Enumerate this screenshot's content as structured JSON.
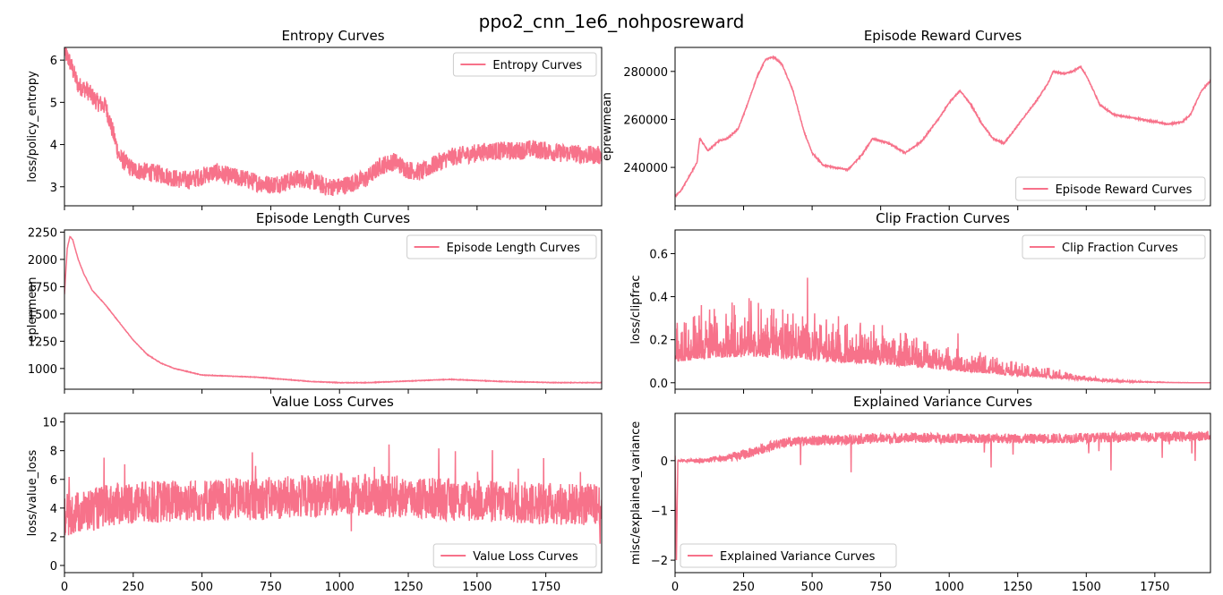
{
  "figure_title": "ppo2_cnn_1e6_nohposreward",
  "line_color": "#f7728a",
  "chart_data": [
    {
      "type": "line",
      "id": "entropy",
      "title": "Entropy Curves",
      "xlabel": "",
      "ylabel": "loss/policy_entropy",
      "legend": "Entropy Curves",
      "legend_loc": "top-right",
      "xlim": [
        0,
        1953
      ],
      "ylim": [
        2.55,
        6.3
      ],
      "xticks": [
        0,
        250,
        500,
        750,
        1000,
        1250,
        1500,
        1750
      ],
      "xticklabels_shown": false,
      "yticks": [
        3,
        4,
        5,
        6
      ],
      "yticklabels": [
        "3",
        "4",
        "5",
        "6"
      ],
      "noise": 0.22,
      "x": [
        0,
        20,
        50,
        80,
        120,
        150,
        180,
        200,
        250,
        300,
        350,
        400,
        450,
        500,
        550,
        600,
        650,
        700,
        750,
        800,
        850,
        900,
        950,
        1000,
        1050,
        1100,
        1150,
        1200,
        1250,
        1300,
        1350,
        1400,
        1450,
        1500,
        1550,
        1600,
        1650,
        1700,
        1750,
        1800,
        1850,
        1900,
        1953
      ],
      "y": [
        6.2,
        5.95,
        5.4,
        5.3,
        5.0,
        4.9,
        4.2,
        3.7,
        3.4,
        3.35,
        3.3,
        3.2,
        3.15,
        3.25,
        3.35,
        3.25,
        3.2,
        3.1,
        3.05,
        3.1,
        3.2,
        3.15,
        3.0,
        3.0,
        3.1,
        3.2,
        3.5,
        3.6,
        3.4,
        3.35,
        3.55,
        3.7,
        3.75,
        3.8,
        3.85,
        3.85,
        3.85,
        3.9,
        3.85,
        3.8,
        3.8,
        3.75,
        3.75
      ]
    },
    {
      "type": "line",
      "id": "reward",
      "title": "Episode Reward Curves",
      "xlabel": "",
      "ylabel": "eprewmean",
      "legend": "Episode Reward Curves",
      "legend_loc": "bottom-right",
      "xlim": [
        0,
        1953
      ],
      "ylim": [
        224000,
        290000
      ],
      "xticks": [
        0,
        250,
        500,
        750,
        1000,
        1250,
        1500,
        1750
      ],
      "xticklabels_shown": false,
      "yticks": [
        240000,
        260000,
        280000
      ],
      "yticklabels": [
        "240000",
        "260000",
        "280000"
      ],
      "noise": 700,
      "x": [
        0,
        20,
        50,
        80,
        90,
        120,
        160,
        190,
        230,
        260,
        300,
        330,
        360,
        390,
        430,
        470,
        500,
        540,
        580,
        630,
        680,
        720,
        780,
        840,
        900,
        960,
        1000,
        1040,
        1080,
        1120,
        1160,
        1200,
        1240,
        1280,
        1320,
        1360,
        1380,
        1420,
        1450,
        1480,
        1510,
        1550,
        1600,
        1650,
        1700,
        1750,
        1800,
        1850,
        1880,
        1920,
        1953
      ],
      "y": [
        228000,
        230000,
        236000,
        242000,
        252000,
        247000,
        251000,
        252000,
        256000,
        265000,
        278000,
        285000,
        286000,
        283000,
        272000,
        255000,
        246000,
        241000,
        240000,
        239000,
        245000,
        252000,
        250000,
        246000,
        251000,
        260000,
        267000,
        272000,
        266000,
        258000,
        252000,
        250000,
        256000,
        262000,
        268000,
        275000,
        280000,
        279000,
        280000,
        282000,
        276000,
        266000,
        262000,
        261000,
        260000,
        259000,
        258000,
        259000,
        262000,
        272000,
        276000
      ]
    },
    {
      "type": "line",
      "id": "eplen",
      "title": "Episode Length Curves",
      "xlabel": "",
      "ylabel": "eplenmean",
      "legend": "Episode Length Curves",
      "legend_loc": "top-right",
      "xlim": [
        0,
        1953
      ],
      "ylim": [
        810,
        2270
      ],
      "xticks": [
        0,
        250,
        500,
        750,
        1000,
        1250,
        1500,
        1750
      ],
      "xticklabels_shown": false,
      "yticks": [
        1000,
        1250,
        1500,
        1750,
        2000,
        2250
      ],
      "yticklabels": [
        "1000",
        "1250",
        "1500",
        "1750",
        "2000",
        "2250"
      ],
      "noise": 6,
      "x": [
        0,
        10,
        20,
        30,
        50,
        70,
        100,
        150,
        200,
        250,
        300,
        350,
        400,
        450,
        500,
        600,
        700,
        800,
        900,
        1000,
        1100,
        1200,
        1300,
        1400,
        1500,
        1600,
        1700,
        1800,
        1900,
        1953
      ],
      "y": [
        1680,
        2100,
        2210,
        2180,
        2000,
        1870,
        1720,
        1580,
        1420,
        1260,
        1130,
        1050,
        1000,
        970,
        940,
        930,
        920,
        900,
        880,
        870,
        870,
        880,
        890,
        900,
        890,
        880,
        875,
        870,
        870,
        870
      ]
    },
    {
      "type": "line",
      "id": "clipfrac",
      "title": "Clip Fraction Curves",
      "xlabel": "",
      "ylabel": "loss/clipfrac",
      "legend": "Clip Fraction Curves",
      "legend_loc": "top-right",
      "xlim": [
        0,
        1953
      ],
      "ylim": [
        -0.03,
        0.71
      ],
      "xticks": [
        0,
        250,
        500,
        750,
        1000,
        1250,
        1500,
        1750
      ],
      "xticklabels_shown": false,
      "yticks": [
        0.0,
        0.2,
        0.4,
        0.6
      ],
      "yticklabels": [
        "0.0",
        "0.2",
        "0.4",
        "0.6"
      ],
      "noise": 0.09,
      "x": [
        0,
        100,
        200,
        300,
        400,
        500,
        600,
        700,
        800,
        900,
        1000,
        1100,
        1200,
        1300,
        1400,
        1500,
        1600,
        1700,
        1800,
        1900,
        1953
      ],
      "y": [
        0.12,
        0.14,
        0.15,
        0.15,
        0.14,
        0.13,
        0.12,
        0.11,
        0.1,
        0.09,
        0.07,
        0.06,
        0.045,
        0.035,
        0.025,
        0.015,
        0.006,
        0.003,
        0.001,
        0.0,
        0.0
      ]
    },
    {
      "type": "line",
      "id": "valueloss",
      "title": "Value Loss Curves",
      "xlabel": "",
      "ylabel": "loss/value_loss",
      "legend": "Value Loss Curves",
      "legend_loc": "bottom-right",
      "xlim": [
        0,
        1953
      ],
      "ylim": [
        -0.5,
        10.6
      ],
      "xticks": [
        0,
        250,
        500,
        750,
        1000,
        1250,
        1500,
        1750
      ],
      "xticklabels": [
        "0",
        "250",
        "500",
        "750",
        "1000",
        "1250",
        "1500",
        "1750"
      ],
      "yticks": [
        0,
        2,
        4,
        6,
        8,
        10
      ],
      "yticklabels": [
        "0",
        "2",
        "4",
        "6",
        "8",
        "10"
      ],
      "noise": 1.5,
      "x": [
        0,
        200,
        400,
        600,
        800,
        1000,
        1200,
        1400,
        1600,
        1800,
        1953
      ],
      "y": [
        3.5,
        4.3,
        4.5,
        4.6,
        4.7,
        5.0,
        4.8,
        4.6,
        4.4,
        4.3,
        4.2
      ]
    },
    {
      "type": "line",
      "id": "explvar",
      "title": "Explained Variance Curves",
      "xlabel": "",
      "ylabel": "misc/explained_variance",
      "legend": "Explained Variance Curves",
      "legend_loc": "bottom-left",
      "xlim": [
        0,
        1953
      ],
      "ylim": [
        -2.25,
        0.95
      ],
      "xticks": [
        0,
        250,
        500,
        750,
        1000,
        1250,
        1500,
        1750
      ],
      "xticklabels": [
        "0",
        "250",
        "500",
        "750",
        "1000",
        "1250",
        "1500",
        "1750"
      ],
      "yticks": [
        -2,
        -1,
        0
      ],
      "yticklabels": [
        "−2",
        "−1",
        "0"
      ],
      "noise": 0.1,
      "x": [
        0,
        5,
        10,
        50,
        100,
        150,
        200,
        250,
        300,
        350,
        400,
        500,
        600,
        700,
        800,
        900,
        1000,
        1100,
        1200,
        1300,
        1400,
        1500,
        1600,
        1700,
        1800,
        1900,
        1953
      ],
      "y": [
        0.1,
        -2.0,
        0.0,
        0.0,
        0.0,
        0.03,
        0.06,
        0.12,
        0.2,
        0.3,
        0.35,
        0.4,
        0.42,
        0.44,
        0.45,
        0.46,
        0.45,
        0.44,
        0.45,
        0.44,
        0.45,
        0.46,
        0.47,
        0.48,
        0.48,
        0.49,
        0.5
      ]
    }
  ]
}
